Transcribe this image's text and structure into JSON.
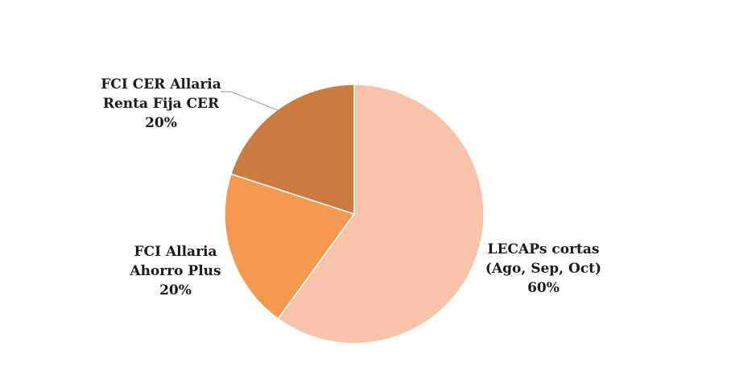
{
  "chart_data": {
    "type": "pie",
    "title": "",
    "slices": [
      {
        "label_lines": [
          "LECAPs cortas",
          "(Ago, Sep, Oct)",
          "60%"
        ],
        "value": 60,
        "color": "#f8c3a8"
      },
      {
        "label_lines": [
          "FCI Allaria",
          "Ahorro Plus",
          "20%"
        ],
        "value": 20,
        "color": "#f4994f"
      },
      {
        "label_lines": [
          "FCI CER Allaria",
          "Renta Fija CER",
          "20%"
        ],
        "value": 20,
        "color": "#cb7b40"
      }
    ],
    "start": "12 o'clock",
    "direction": "clockwise",
    "legend": "none",
    "labels_outside": true
  }
}
